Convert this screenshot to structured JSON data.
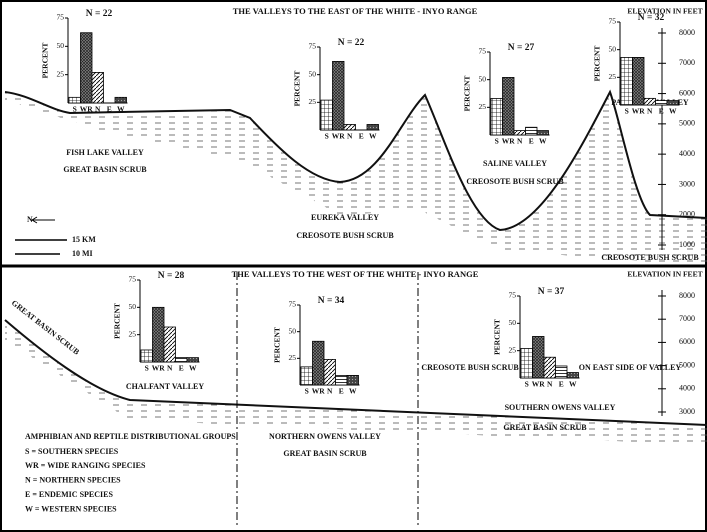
{
  "chart_data": [
    {
      "type": "bar",
      "title": "N = 22",
      "y_label": "PERCENT",
      "categories": [
        "S",
        "WR",
        "N",
        "E",
        "W"
      ],
      "values": [
        5,
        62,
        27,
        0,
        5
      ],
      "ylim": [
        0,
        75
      ],
      "yticks": [
        25,
        50,
        75
      ]
    },
    {
      "type": "bar",
      "title": "N = 22",
      "y_label": "PERCENT",
      "categories": [
        "S",
        "WR",
        "N",
        "E",
        "W"
      ],
      "values": [
        27,
        62,
        5,
        0,
        5
      ],
      "ylim": [
        0,
        75
      ],
      "yticks": [
        25,
        50,
        75
      ]
    },
    {
      "type": "bar",
      "title": "N = 27",
      "y_label": "PERCENT",
      "categories": [
        "S",
        "WR",
        "N",
        "E",
        "W"
      ],
      "values": [
        33,
        52,
        4,
        7,
        4
      ],
      "ylim": [
        0,
        75
      ],
      "yticks": [
        25,
        50,
        75
      ]
    },
    {
      "type": "bar",
      "title": "N = 32",
      "y_label": "PERCENT",
      "categories": [
        "S",
        "WR",
        "N",
        "E",
        "W"
      ],
      "values": [
        43,
        43,
        6,
        4,
        4
      ],
      "ylim": [
        0,
        75
      ],
      "yticks": [
        25,
        50,
        75
      ]
    },
    {
      "type": "bar",
      "title": "N = 28",
      "y_label": "PERCENT",
      "categories": [
        "S",
        "WR",
        "N",
        "E",
        "W"
      ],
      "values": [
        11,
        50,
        32,
        4,
        4
      ],
      "ylim": [
        0,
        75
      ],
      "yticks": [
        25,
        50,
        75
      ]
    },
    {
      "type": "bar",
      "title": "N = 34",
      "y_label": "PERCENT",
      "categories": [
        "S",
        "WR",
        "N",
        "E",
        "W"
      ],
      "values": [
        17,
        41,
        24,
        9,
        9
      ],
      "ylim": [
        0,
        75
      ],
      "yticks": [
        25,
        50,
        75
      ]
    },
    {
      "type": "bar",
      "title": "N = 37",
      "y_label": "PERCENT",
      "categories": [
        "S",
        "WR",
        "N",
        "E",
        "W"
      ],
      "values": [
        27,
        38,
        19,
        11,
        5
      ],
      "ylim": [
        0,
        75
      ],
      "yticks": [
        25,
        50,
        75
      ]
    }
  ],
  "panels": [
    {
      "title": "THE VALLEYS TO THE EAST OF THE WHITE - INYO RANGE",
      "elevation_label": "ELEVATION IN FEET",
      "elevation_ticks": [
        8000,
        7000,
        6000,
        5000,
        4000,
        3000,
        2000,
        1000
      ],
      "labels": [
        "FISH LAKE VALLEY",
        "GREAT BASIN SCRUB",
        "EUREKA VALLEY",
        "CREOSOTE BUSH SCRUB",
        "SALINE VALLEY",
        "CREOSOTE BUSH SCRUB",
        "PANAMINT VALLEY",
        "CREOSOTE BUSH SCRUB",
        "15 KM",
        "10 MI",
        "N"
      ]
    },
    {
      "title": "THE VALLEYS TO THE WEST OF THE WHITE - INYO RANGE",
      "elevation_label": "ELEVATION IN FEET",
      "elevation_ticks": [
        8000,
        7000,
        6000,
        5000,
        4000,
        3000
      ],
      "labels": [
        "GREAT BASIN SCRUB",
        "CHALFANT VALLEY",
        "NORTHERN OWENS VALLEY",
        "GREAT BASIN SCRUB",
        "CREOSOTE BUSH SCRUB",
        "ON EAST SIDE OF VALLEY",
        "SOUTHERN OWENS VALLEY",
        "GREAT BASIN SCRUB"
      ],
      "legend": {
        "title": "AMPHIBIAN AND REPTILE DISTRIBUTIONAL GROUPS",
        "items": [
          "S = SOUTHERN SPECIES",
          "WR = WIDE RANGING SPECIES",
          "N = NORTHERN SPECIES",
          "E = ENDEMIC SPECIES",
          "W = WESTERN SPECIES"
        ]
      }
    }
  ]
}
